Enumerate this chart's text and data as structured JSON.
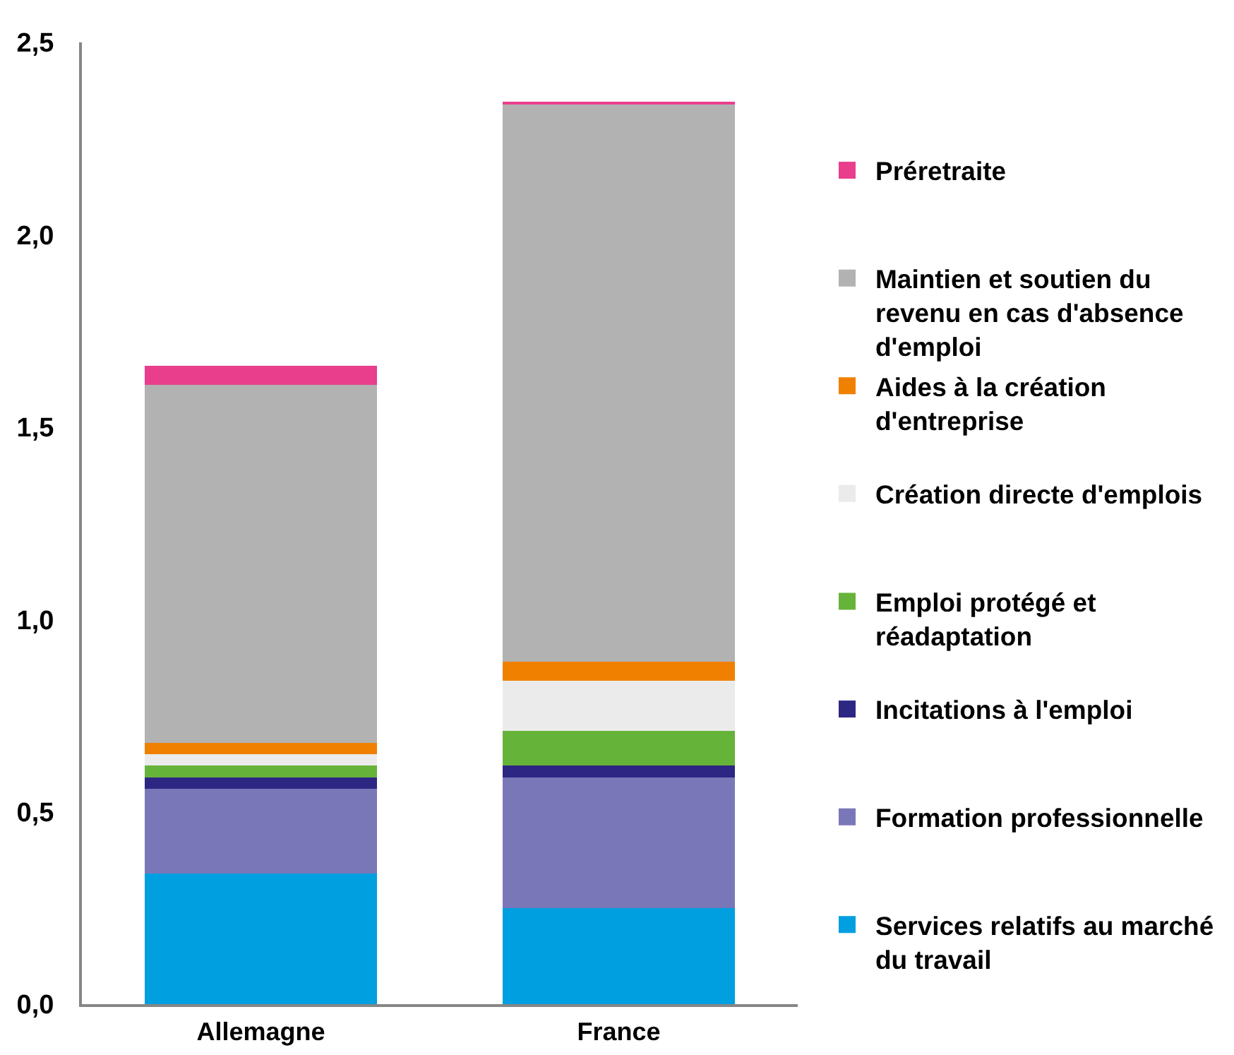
{
  "chart_data": {
    "type": "bar",
    "stacked": true,
    "categories": [
      "Allemagne",
      "France"
    ],
    "series": [
      {
        "name": "Services relatifs au marché du travail",
        "color": "#009fe0",
        "values": [
          0.34,
          0.25
        ]
      },
      {
        "name": "Formation professionnelle",
        "color": "#7a77b9",
        "values": [
          0.22,
          0.34
        ]
      },
      {
        "name": "Incitations à l'emploi",
        "color": "#2e2683",
        "values": [
          0.03,
          0.03
        ]
      },
      {
        "name": "Emploi protégé et réadaptation",
        "color": "#66b33a",
        "values": [
          0.03,
          0.09
        ]
      },
      {
        "name": "Création directe d'emplois",
        "color": "#ebebeb",
        "values": [
          0.03,
          0.13
        ]
      },
      {
        "name": "Aides à la création d'entreprise",
        "color": "#f08000",
        "values": [
          0.03,
          0.05
        ]
      },
      {
        "name": "Maintien et soutien du revenu en cas d'absence d'emploi",
        "color": "#b2b2b2",
        "values": [
          0.93,
          1.45
        ]
      },
      {
        "name": "Préretraite",
        "color": "#e83e8c",
        "values": [
          0.05,
          0.005
        ]
      }
    ],
    "ylim": [
      0,
      2.5
    ],
    "yticks": [
      {
        "value": 0,
        "label": "0,0"
      },
      {
        "value": 0.5,
        "label": "0,5"
      },
      {
        "value": 1,
        "label": "1,0"
      },
      {
        "value": 1.5,
        "label": "1,5"
      },
      {
        "value": 2,
        "label": "2,0"
      },
      {
        "value": 2.5,
        "label": "2,5"
      }
    ],
    "legend": "right"
  }
}
